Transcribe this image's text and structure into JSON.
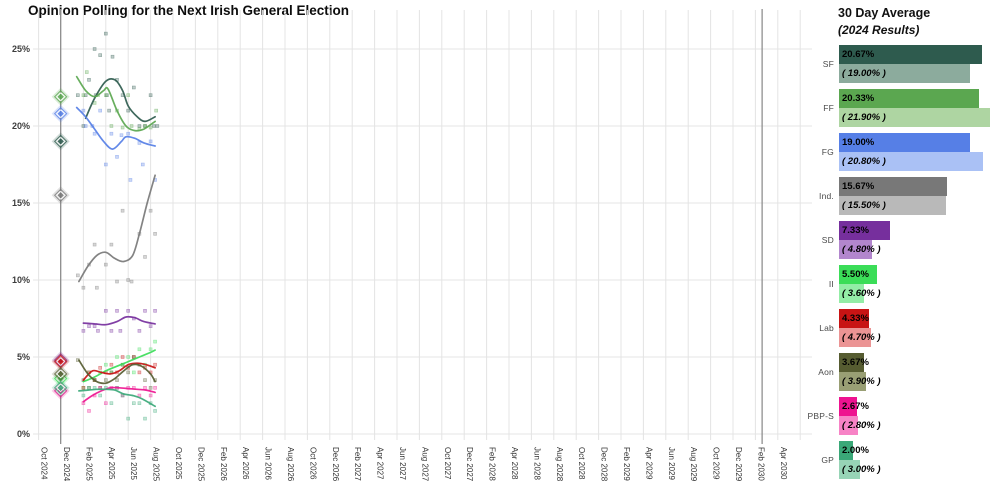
{
  "title": "Opinion Polling for the Next Irish General Election",
  "right_panel": {
    "title": "30 Day Average",
    "subtitle": "(2024 Results)"
  },
  "chart_data": {
    "type": "scatter",
    "title": "Opinion Polling for the Next Irish General Election",
    "y_tick_labels": [
      "0%",
      "5%",
      "10%",
      "15%",
      "20%",
      "25%"
    ],
    "ylim": [
      0,
      27
    ],
    "grid": true,
    "x_axis_unit": "month",
    "x_tick_labels": [
      "Oct 2024",
      "Dec 2024",
      "Feb 2025",
      "Apr 2025",
      "Jun 2025",
      "Aug 2025",
      "Oct 2025",
      "Dec 2025",
      "Feb 2026",
      "Apr 2026",
      "Jun 2026",
      "Aug 2026",
      "Oct 2026",
      "Dec 2026",
      "Feb 2027",
      "Apr 2027",
      "Jun 2027",
      "Aug 2027",
      "Oct 2027",
      "Dec 2027",
      "Feb 2028",
      "Apr 2028",
      "Jun 2028",
      "Aug 2028",
      "Oct 2028",
      "Dec 2028",
      "Feb 2029",
      "Apr 2029",
      "Jun 2029",
      "Aug 2029",
      "Oct 2029",
      "Dec 2029",
      "Feb 2030",
      "Apr 2030"
    ],
    "election_line_month": 1.97,
    "latest_date_line_month": 64.6,
    "months_note": "month index 0 = Oct 2024; trend and scatter points are [month_index, percent]",
    "parties": [
      {
        "id": "sf",
        "label": "SF",
        "color": "#2e5b4e",
        "light": "#8cab9d",
        "avg_label": "20.67%",
        "result_label": "( 19.00% )",
        "avg_value": 20.67,
        "result_value": 19.0,
        "trend": [
          [
            4.2,
            20.5
          ],
          [
            5,
            21.8
          ],
          [
            6,
            22.9
          ],
          [
            6.8,
            23.0
          ],
          [
            7.5,
            22.3
          ],
          [
            8,
            21.3
          ],
          [
            8.8,
            20.6
          ],
          [
            9.5,
            20.3
          ],
          [
            10.4,
            20.6
          ]
        ],
        "scatter": [
          [
            3.5,
            22
          ],
          [
            4,
            20
          ],
          [
            4.2,
            22
          ],
          [
            4.5,
            23
          ],
          [
            5,
            25
          ],
          [
            5.1,
            22
          ],
          [
            5.5,
            24.6
          ],
          [
            6,
            26
          ],
          [
            6.1,
            22
          ],
          [
            6.3,
            21
          ],
          [
            6.6,
            24.5
          ],
          [
            7,
            23
          ],
          [
            7.5,
            22
          ],
          [
            8,
            21
          ],
          [
            8.5,
            22.5
          ],
          [
            9,
            20
          ],
          [
            9.5,
            20
          ],
          [
            10,
            22
          ],
          [
            10.3,
            20
          ],
          [
            10.6,
            20
          ]
        ]
      },
      {
        "id": "ff",
        "label": "FF",
        "color": "#5ba750",
        "light": "#aed5a2",
        "avg_label": "20.33%",
        "result_label": "( 21.90% )",
        "avg_value": 20.33,
        "result_value": 21.9,
        "trend": [
          [
            3.4,
            23.2
          ],
          [
            4.2,
            22.3
          ],
          [
            5,
            21.9
          ],
          [
            5.8,
            22.3
          ],
          [
            6.2,
            22.4
          ],
          [
            7,
            21.0
          ],
          [
            7.8,
            20.0
          ],
          [
            8.6,
            19.7
          ],
          [
            9.4,
            19.8
          ],
          [
            10.4,
            20.3
          ]
        ],
        "scatter": [
          [
            4,
            22
          ],
          [
            4.3,
            23.5
          ],
          [
            5,
            21.5
          ],
          [
            5.3,
            22
          ],
          [
            6,
            22
          ],
          [
            6.5,
            20
          ],
          [
            7,
            21
          ],
          [
            7.5,
            19.9
          ],
          [
            8,
            22
          ],
          [
            8.3,
            20
          ],
          [
            9,
            19.8
          ],
          [
            9.5,
            20
          ],
          [
            10,
            19.9
          ],
          [
            10.5,
            21
          ]
        ]
      },
      {
        "id": "fg",
        "label": "FG",
        "color": "#567fe6",
        "light": "#aac1f5",
        "avg_label": "19.00%",
        "result_label": "( 20.80% )",
        "avg_value": 19.0,
        "result_value": 20.8,
        "trend": [
          [
            3.4,
            21.2
          ],
          [
            4.2,
            20.6
          ],
          [
            5,
            19.8
          ],
          [
            5.8,
            19.0
          ],
          [
            6.6,
            18.5
          ],
          [
            7.4,
            19.0
          ],
          [
            7.8,
            19.3
          ],
          [
            8.6,
            19.2
          ],
          [
            9.4,
            18.9
          ],
          [
            10.4,
            18.7
          ]
        ],
        "scatter": [
          [
            4,
            21
          ],
          [
            4.2,
            20
          ],
          [
            4.8,
            20
          ],
          [
            5,
            19.5
          ],
          [
            5.5,
            21
          ],
          [
            6,
            17.5
          ],
          [
            6.5,
            19.5
          ],
          [
            7,
            18
          ],
          [
            7.4,
            19.4
          ],
          [
            8,
            19.5
          ],
          [
            8.2,
            16.5
          ],
          [
            9,
            18.9
          ],
          [
            9.3,
            17.5
          ],
          [
            10,
            19
          ],
          [
            10.4,
            16.5
          ]
        ]
      },
      {
        "id": "ind",
        "label": "Ind.",
        "color": "#787878",
        "light": "#b9b9b9",
        "avg_label": "15.67%",
        "result_label": "( 15.50% )",
        "avg_value": 15.67,
        "result_value": 15.5,
        "trend": [
          [
            3.6,
            9.9
          ],
          [
            4.4,
            10.9
          ],
          [
            5.2,
            11.6
          ],
          [
            6,
            11.8
          ],
          [
            6.8,
            11.4
          ],
          [
            7.6,
            11.2
          ],
          [
            8.4,
            11.6
          ],
          [
            9,
            13.0
          ],
          [
            9.7,
            15.0
          ],
          [
            10.4,
            16.8
          ]
        ],
        "scatter": [
          [
            3.5,
            10.3
          ],
          [
            4,
            9.5
          ],
          [
            4.5,
            11
          ],
          [
            5,
            12.3
          ],
          [
            5.2,
            9.5
          ],
          [
            6,
            11
          ],
          [
            6.5,
            12.3
          ],
          [
            7,
            9.9
          ],
          [
            7.5,
            14.5
          ],
          [
            8,
            10
          ],
          [
            8.3,
            9.9
          ],
          [
            9,
            13
          ],
          [
            9.5,
            11.5
          ],
          [
            10,
            14.5
          ],
          [
            10.4,
            13
          ]
        ]
      },
      {
        "id": "sd",
        "label": "SD",
        "color": "#762f9d",
        "light": "#b286cd",
        "avg_label": "7.33%",
        "result_label": "( 4.80% )",
        "avg_value": 7.33,
        "result_value": 4.8,
        "trend": [
          [
            4,
            7.2
          ],
          [
            5,
            7.15
          ],
          [
            6,
            7.1
          ],
          [
            7,
            7.3
          ],
          [
            7.8,
            7.6
          ],
          [
            8.6,
            7.55
          ],
          [
            9.4,
            7.3
          ],
          [
            10.4,
            7.15
          ]
        ],
        "scatter": [
          [
            4,
            6.7
          ],
          [
            4.5,
            7
          ],
          [
            5,
            7
          ],
          [
            5.3,
            6.7
          ],
          [
            6,
            8
          ],
          [
            6.5,
            6.7
          ],
          [
            7,
            8
          ],
          [
            7.3,
            6.7
          ],
          [
            8,
            8
          ],
          [
            8.5,
            7.5
          ],
          [
            9,
            6.7
          ],
          [
            9.5,
            8
          ],
          [
            10,
            7
          ],
          [
            10.4,
            8
          ]
        ]
      },
      {
        "id": "ii",
        "label": "II",
        "color": "#3bdd58",
        "light": "#93eda6",
        "avg_label": "5.50%",
        "result_label": "( 3.60% )",
        "avg_value": 5.5,
        "result_value": 3.6,
        "trend": [
          [
            4,
            3.4
          ],
          [
            5,
            3.7
          ],
          [
            6,
            4.1
          ],
          [
            7,
            4.4
          ],
          [
            8,
            4.7
          ],
          [
            9,
            5.0
          ],
          [
            10,
            5.3
          ],
          [
            10.4,
            5.45
          ]
        ],
        "scatter": [
          [
            4,
            3
          ],
          [
            4.5,
            4
          ],
          [
            5,
            3.5
          ],
          [
            5.5,
            4
          ],
          [
            6,
            4.5
          ],
          [
            6.5,
            4
          ],
          [
            7,
            5
          ],
          [
            7.5,
            4.5
          ],
          [
            8,
            5
          ],
          [
            8.5,
            4
          ],
          [
            9,
            5.5
          ],
          [
            9.5,
            4.5
          ],
          [
            10,
            5.5
          ],
          [
            10.4,
            6
          ]
        ]
      },
      {
        "id": "lab",
        "label": "Lab",
        "color": "#c81414",
        "light": "#eb9494",
        "avg_label": "4.33%",
        "result_label": "( 4.70% )",
        "avg_value": 4.33,
        "result_value": 4.7,
        "trend": [
          [
            4,
            3.5
          ],
          [
            4.8,
            4.1
          ],
          [
            5.6,
            4.0
          ],
          [
            6.4,
            3.9
          ],
          [
            7.2,
            4.1
          ],
          [
            8,
            4.5
          ],
          [
            8.8,
            4.6
          ],
          [
            9.6,
            4.5
          ],
          [
            10.4,
            4.3
          ]
        ],
        "scatter": [
          [
            4,
            3
          ],
          [
            4.5,
            4
          ],
          [
            5,
            3.5
          ],
          [
            5.5,
            4.3
          ],
          [
            6,
            4
          ],
          [
            6.5,
            4.5
          ],
          [
            7,
            4
          ],
          [
            7.5,
            5
          ],
          [
            8,
            4.3
          ],
          [
            8.5,
            5
          ],
          [
            9,
            4
          ],
          [
            9.5,
            4.3
          ],
          [
            10,
            4
          ],
          [
            10.4,
            4.5
          ]
        ]
      },
      {
        "id": "aon",
        "label": "Aon",
        "color": "#565c31",
        "light": "#999f74",
        "avg_label": "3.67%",
        "result_label": "( 3.90% )",
        "avg_value": 3.67,
        "result_value": 3.9,
        "trend": [
          [
            3.6,
            4.8
          ],
          [
            4.4,
            3.9
          ],
          [
            5.2,
            3.4
          ],
          [
            6,
            3.3
          ],
          [
            6.8,
            3.6
          ],
          [
            7.6,
            4.1
          ],
          [
            8.4,
            4.5
          ],
          [
            9.2,
            4.4
          ],
          [
            10,
            3.9
          ],
          [
            10.4,
            3.4
          ]
        ],
        "scatter": [
          [
            3.5,
            4.8
          ],
          [
            4,
            3.5
          ],
          [
            4.5,
            3
          ],
          [
            5,
            3.5
          ],
          [
            5.5,
            3
          ],
          [
            6,
            3.5
          ],
          [
            6.5,
            4
          ],
          [
            7,
            3.5
          ],
          [
            7.5,
            4.5
          ],
          [
            8,
            4
          ],
          [
            8.5,
            5
          ],
          [
            9,
            4.5
          ],
          [
            9.5,
            3.5
          ],
          [
            10,
            3
          ],
          [
            10.4,
            3.5
          ]
        ]
      },
      {
        "id": "pbp",
        "label": "PBP-S",
        "color": "#ee1390",
        "light": "#f783c6",
        "avg_label": "2.67%",
        "result_label": "( 2.80% )",
        "avg_value": 2.67,
        "result_value": 2.8,
        "trend": [
          [
            4,
            2.1
          ],
          [
            4.8,
            2.5
          ],
          [
            5.6,
            2.8
          ],
          [
            6.4,
            3.0
          ],
          [
            7.2,
            3.0
          ],
          [
            8,
            2.95
          ],
          [
            8.8,
            2.9
          ],
          [
            9.6,
            2.85
          ],
          [
            10.4,
            2.7
          ]
        ],
        "scatter": [
          [
            4,
            2
          ],
          [
            4.5,
            1.5
          ],
          [
            5,
            2.5
          ],
          [
            5.5,
            3
          ],
          [
            6,
            2
          ],
          [
            6.5,
            3
          ],
          [
            7,
            3
          ],
          [
            7.5,
            2.5
          ],
          [
            8,
            3
          ],
          [
            8.5,
            3
          ],
          [
            9,
            2.5
          ],
          [
            9.5,
            3
          ],
          [
            10,
            2.5
          ],
          [
            10.4,
            3
          ]
        ]
      },
      {
        "id": "gp",
        "label": "GP",
        "color": "#3aa878",
        "light": "#97d4b6",
        "avg_label": "2.00%",
        "result_label": "( 3.00% )",
        "avg_value": 2.0,
        "result_value": 3.0,
        "trend": [
          [
            3.6,
            2.8
          ],
          [
            4.4,
            2.85
          ],
          [
            5.2,
            2.9
          ],
          [
            6,
            2.9
          ],
          [
            6.8,
            2.85
          ],
          [
            7.6,
            2.6
          ],
          [
            8.4,
            2.5
          ],
          [
            9.2,
            2.3
          ],
          [
            10.4,
            1.8
          ]
        ],
        "scatter": [
          [
            4,
            2.5
          ],
          [
            4.5,
            3
          ],
          [
            5,
            3
          ],
          [
            5.5,
            2.5
          ],
          [
            6,
            3
          ],
          [
            6.5,
            2
          ],
          [
            7,
            3
          ],
          [
            7.5,
            2.5
          ],
          [
            8,
            1
          ],
          [
            8.5,
            2
          ],
          [
            9,
            2
          ],
          [
            9.5,
            1
          ],
          [
            10,
            2
          ],
          [
            10.4,
            1.5
          ]
        ]
      }
    ]
  }
}
